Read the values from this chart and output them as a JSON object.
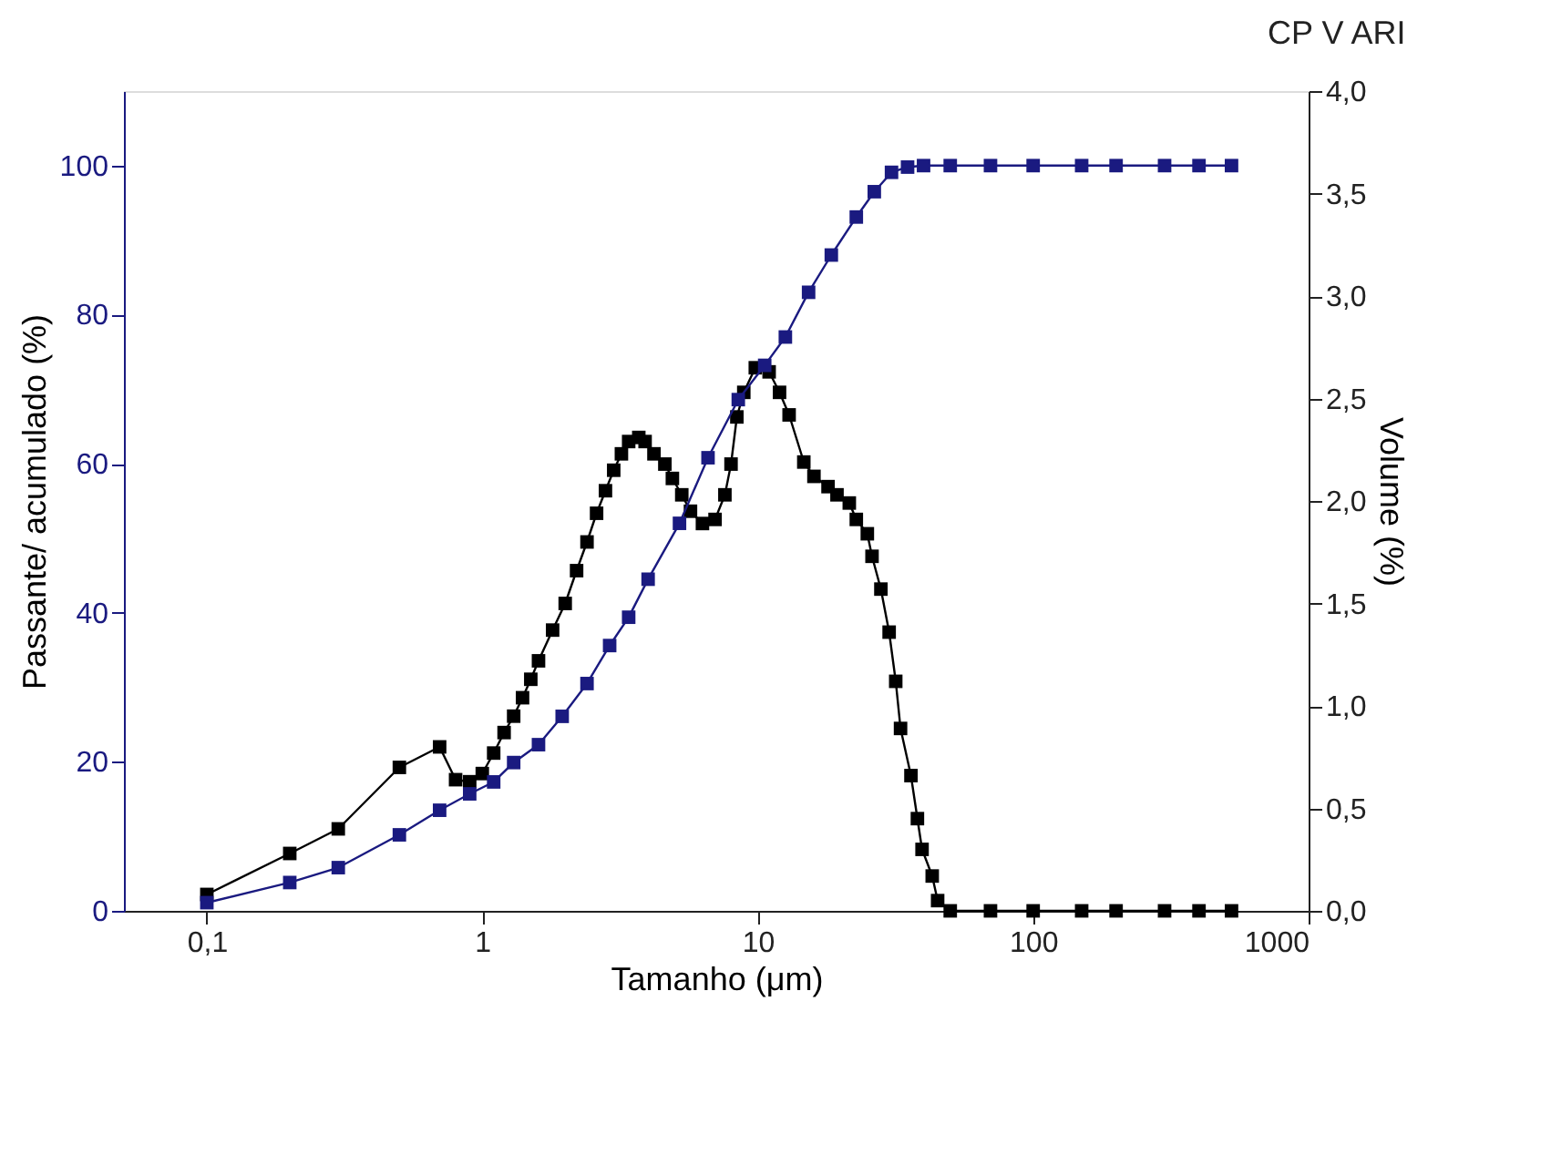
{
  "chart_data": {
    "type": "line",
    "subtitle": "CP V ARI",
    "xlabel": "Tamanho (μm)",
    "ylabel": "Passante/ acumulado (%)",
    "y2label": "Volume (%)",
    "log": "x",
    "marker": "square",
    "line_style": "solid",
    "grid": false,
    "xlim": [
      0.05,
      1000
    ],
    "xticks": [
      {
        "value": 0.1,
        "label": "0,1"
      },
      1,
      10,
      100,
      1000
    ],
    "ylim": [
      0,
      110
    ],
    "yticks": [
      0,
      20,
      40,
      60,
      80,
      100
    ],
    "y2lim": [
      0,
      4
    ],
    "y2ticks": [
      {
        "value": 0,
        "label": "0,0"
      },
      {
        "value": 0.5,
        "label": "0,5"
      },
      {
        "value": 1,
        "label": "1,0"
      },
      {
        "value": 1.5,
        "label": "1,5"
      },
      {
        "value": 2,
        "label": "2,0"
      },
      {
        "value": 2.5,
        "label": "2,5"
      },
      {
        "value": 3,
        "label": "3,0"
      },
      {
        "value": 3.5,
        "label": "3,5"
      },
      {
        "value": 4,
        "label": "4,0"
      }
    ],
    "series": [
      {
        "color": "#1a1a80",
        "x": [
          0.1,
          0.2,
          0.3,
          0.5,
          0.7,
          0.9,
          1.1,
          1.3,
          1.6,
          1.95,
          2.4,
          2.9,
          3.4,
          4.0,
          5.2,
          6.6,
          8.5,
          10.6,
          12.6,
          15.3,
          18.5,
          22.8,
          26.5,
          30.6,
          35,
          40,
          50,
          70,
          100,
          150,
          200,
          300,
          400,
          525
        ],
        "values": [
          1.1,
          3.8,
          5.8,
          10.2,
          13.5,
          15.7,
          17.3,
          19.9,
          22.3,
          26.1,
          30.5,
          35.6,
          39.4,
          44.5,
          52,
          60.8,
          68.6,
          73.2,
          77,
          83,
          88,
          93.1,
          96.5,
          99.1,
          99.8,
          100,
          100,
          100,
          100,
          100,
          100,
          100,
          100,
          100
        ]
      },
      {
        "color": "#000000",
        "axis": "y2",
        "x": [
          0.1,
          0.2,
          0.3,
          0.5,
          0.7,
          0.8,
          0.9,
          1.0,
          1.1,
          1.2,
          1.3,
          1.4,
          1.5,
          1.6,
          1.8,
          2.0,
          2.2,
          2.4,
          2.6,
          2.8,
          3.0,
          3.2,
          3.4,
          3.7,
          3.9,
          4.2,
          4.6,
          4.9,
          5.3,
          5.7,
          6.3,
          7.0,
          7.6,
          8.0,
          8.4,
          8.9,
          9.8,
          11,
          12,
          13,
          14.7,
          16,
          18,
          19.4,
          21.5,
          22.8,
          25,
          26,
          28,
          30,
          31.7,
          33,
          36,
          38,
          39.5,
          43,
          45,
          50,
          70,
          100,
          150,
          200,
          300,
          400,
          525
        ],
        "values": [
          0.08,
          0.28,
          0.4,
          0.7,
          0.8,
          0.64,
          0.63,
          0.67,
          0.77,
          0.87,
          0.95,
          1.04,
          1.13,
          1.22,
          1.37,
          1.5,
          1.66,
          1.8,
          1.94,
          2.05,
          2.15,
          2.23,
          2.29,
          2.31,
          2.29,
          2.23,
          2.18,
          2.11,
          2.03,
          1.95,
          1.89,
          1.91,
          2.03,
          2.18,
          2.41,
          2.53,
          2.65,
          2.63,
          2.53,
          2.42,
          2.19,
          2.12,
          2.07,
          2.03,
          1.99,
          1.91,
          1.84,
          1.73,
          1.57,
          1.36,
          1.12,
          0.89,
          0.66,
          0.45,
          0.3,
          0.17,
          0.05,
          0,
          0,
          0,
          0,
          0,
          0,
          0,
          0
        ]
      }
    ]
  }
}
